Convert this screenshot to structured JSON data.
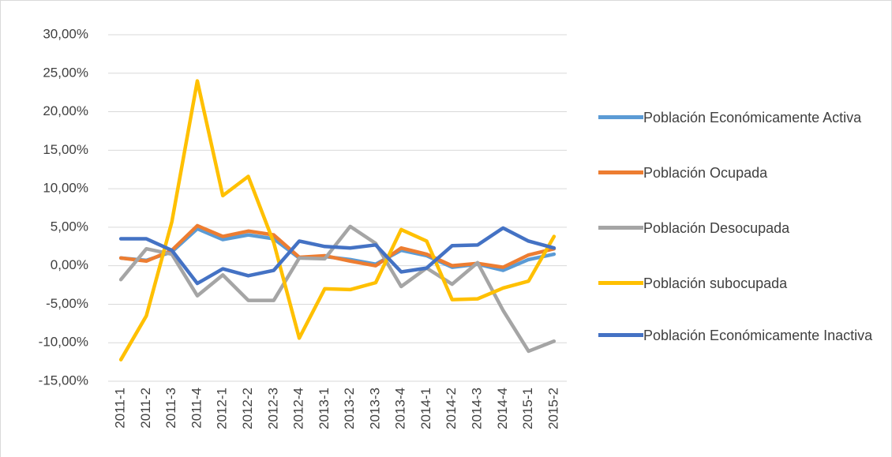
{
  "chart_data": {
    "type": "line",
    "categories": [
      "2011-1",
      "2011-2",
      "2011-3",
      "2011-4",
      "2012-1",
      "2012-2",
      "2012-3",
      "2012-4",
      "2013-1",
      "2013-2",
      "2013-3",
      "2013-4",
      "2014-1",
      "2014-2",
      "2014-3",
      "2014-4",
      "2015-1",
      "2015-2"
    ],
    "series": [
      {
        "name": "Población Económicamente Activa",
        "color": "#5b9bd5",
        "values": [
          1.0,
          0.7,
          1.8,
          4.8,
          3.4,
          4.0,
          3.5,
          1.0,
          1.2,
          0.8,
          0.2,
          2.0,
          1.3,
          -0.2,
          0.2,
          -0.6,
          0.8,
          1.5
        ]
      },
      {
        "name": "Población Ocupada",
        "color": "#ed7d31",
        "values": [
          1.0,
          0.6,
          2.0,
          5.2,
          3.8,
          4.5,
          4.0,
          1.1,
          1.3,
          0.6,
          0.0,
          2.3,
          1.5,
          0.0,
          0.3,
          -0.2,
          1.4,
          2.2
        ]
      },
      {
        "name": "Población Desocupada",
        "color": "#a5a5a5",
        "values": [
          -1.8,
          2.2,
          1.5,
          -3.9,
          -1.2,
          -4.5,
          -4.5,
          1.0,
          0.9,
          5.1,
          2.9,
          -2.7,
          -0.3,
          -2.4,
          0.4,
          -5.8,
          -11.1,
          -9.8
        ]
      },
      {
        "name": "Población subocupada",
        "color": "#ffc000",
        "values": [
          -12.2,
          -6.5,
          5.7,
          24.0,
          9.1,
          11.6,
          3.0,
          -9.4,
          -3.0,
          -3.1,
          -2.2,
          4.7,
          3.2,
          -4.4,
          -4.3,
          -2.9,
          -2.0,
          3.8
        ]
      },
      {
        "name": "Población Económicamente Inactiva",
        "color": "#4472c4",
        "values": [
          3.5,
          3.5,
          2.0,
          -2.3,
          -0.4,
          -1.3,
          -0.6,
          3.2,
          2.5,
          2.3,
          2.7,
          -0.8,
          -0.3,
          2.6,
          2.7,
          4.9,
          3.2,
          2.3
        ]
      }
    ],
    "ylim": [
      -15,
      30
    ],
    "yticks": [
      {
        "value": -15,
        "label": "-15,00%"
      },
      {
        "value": -10,
        "label": "-10,00%"
      },
      {
        "value": -5,
        "label": "-5,00%"
      },
      {
        "value": 0,
        "label": "0,00%"
      },
      {
        "value": 5,
        "label": "5,00%"
      },
      {
        "value": 10,
        "label": "10,00%"
      },
      {
        "value": 15,
        "label": "15,00%"
      },
      {
        "value": 20,
        "label": "20,00%"
      },
      {
        "value": 25,
        "label": "25,00%"
      },
      {
        "value": 30,
        "label": "30,00%"
      }
    ],
    "grid": true,
    "legend": "right"
  }
}
